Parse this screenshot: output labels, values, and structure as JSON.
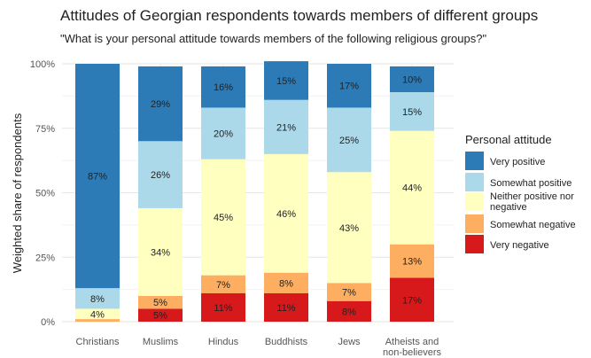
{
  "chart_data": {
    "type": "bar",
    "stacked": true,
    "title": "Attitudes of Georgian respondents towards members of different groups",
    "subtitle": "\"What is your personal attitude towards members of the following religious groups?\"",
    "ylabel": "Weighted share of respondents",
    "xlabel": "",
    "ylim": [
      0,
      100
    ],
    "yticks": [
      "0%",
      "25%",
      "50%",
      "75%",
      "100%"
    ],
    "categories": [
      "Christians",
      "Muslims",
      "Hindus",
      "Buddhists",
      "Jews",
      "Atheists and non-believers"
    ],
    "category_lines": [
      [
        "Christians"
      ],
      [
        "Muslims"
      ],
      [
        "Hindus"
      ],
      [
        "Buddhists"
      ],
      [
        "Jews"
      ],
      [
        "Atheists and",
        "non-believers"
      ]
    ],
    "legend_title": "Personal attitude",
    "legend_position": "right",
    "grid": true,
    "series": [
      {
        "name": "Very negative",
        "color": "#d7191c",
        "values": [
          0,
          5,
          11,
          11,
          8,
          17
        ],
        "labels": [
          "",
          "5%",
          "11%",
          "11%",
          "8%",
          "17%"
        ]
      },
      {
        "name": "Somewhat negative",
        "color": "#fdae61",
        "values": [
          1,
          5,
          7,
          8,
          7,
          13
        ],
        "labels": [
          "",
          "5%",
          "7%",
          "8%",
          "7%",
          "13%"
        ]
      },
      {
        "name": "Neither positive nor negative",
        "legend_lines": [
          "Neither positive nor",
          "negative"
        ],
        "color": "#ffffbf",
        "values": [
          4,
          34,
          45,
          46,
          43,
          44
        ],
        "labels": [
          "4%",
          "34%",
          "45%",
          "46%",
          "43%",
          "44%"
        ]
      },
      {
        "name": "Somewhat positive",
        "color": "#abd9e9",
        "values": [
          8,
          26,
          20,
          21,
          25,
          15
        ],
        "labels": [
          "8%",
          "26%",
          "20%",
          "21%",
          "25%",
          "15%"
        ]
      },
      {
        "name": "Very positive",
        "color": "#2c7bb6",
        "values": [
          87,
          29,
          16,
          15,
          17,
          10
        ],
        "labels": [
          "87%",
          "29%",
          "16%",
          "15%",
          "17%",
          "10%"
        ]
      }
    ]
  }
}
